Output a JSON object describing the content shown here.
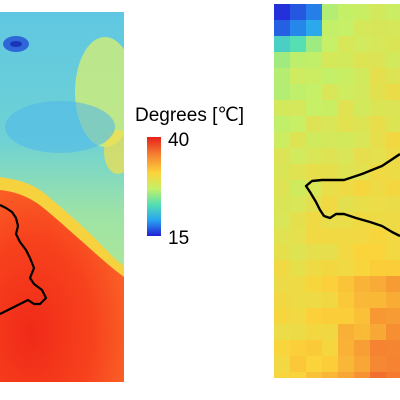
{
  "legend": {
    "title": "Degrees [℃]",
    "max_label": "40",
    "min_label": "15",
    "colors": [
      "#2420d6",
      "#27a4f0",
      "#55dfb2",
      "#c6f067",
      "#fbd33a",
      "#f58231",
      "#e6201b"
    ]
  },
  "maps": [
    {
      "name": "high-resolution-temperature-map"
    },
    {
      "name": "coarse-resolution-temperature-map"
    }
  ]
}
